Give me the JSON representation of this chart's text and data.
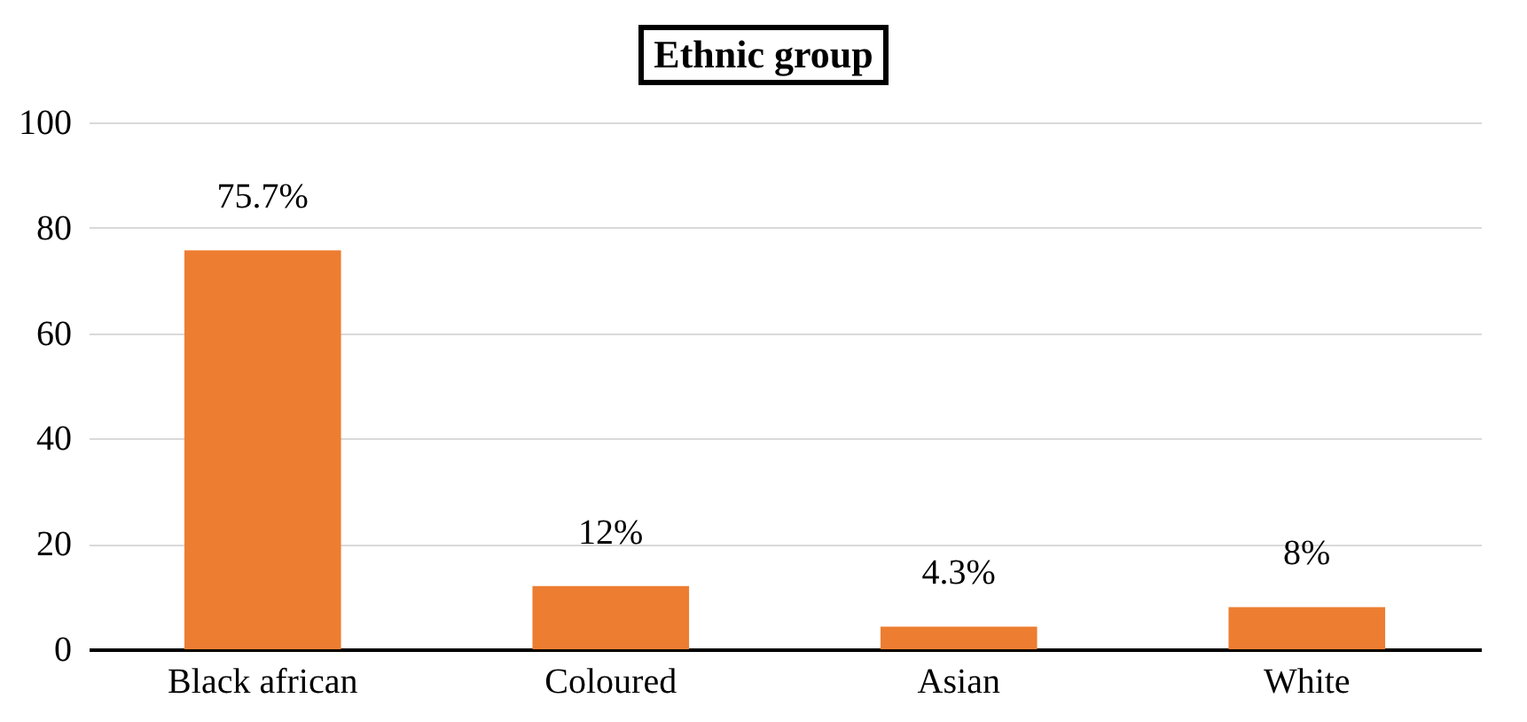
{
  "chart_data": {
    "type": "bar",
    "title": "Ethnic group",
    "categories": [
      "Black african",
      "Coloured",
      "Asian",
      "White"
    ],
    "values": [
      75.7,
      12,
      4.3,
      8
    ],
    "value_labels": [
      "75.7%",
      "12%",
      "4.3%",
      "8%"
    ],
    "color": "#ed7d31",
    "ylim": [
      0,
      100
    ],
    "yticks": [
      0,
      20,
      40,
      60,
      80,
      100
    ],
    "grid": "y"
  }
}
